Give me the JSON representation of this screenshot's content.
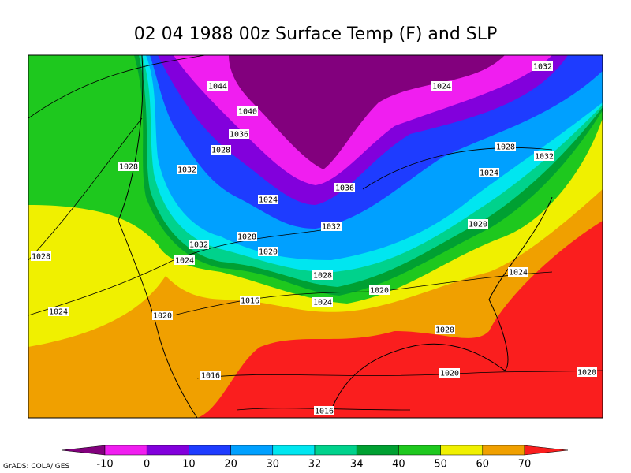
{
  "title": "02 04 1988 00z Surface Temp (F) and SLP",
  "credit": "GrADS: COLA/IGES",
  "isobar_labels": [
    1032,
    1044,
    1024,
    1040,
    1036,
    1028,
    1028,
    1032,
    1028,
    1032,
    1024,
    1036,
    1024,
    1020,
    1032,
    1028,
    1032,
    1020,
    1028,
    1024,
    1024,
    1028,
    1020,
    1016,
    1024,
    1024,
    1020,
    1020,
    1016,
    1020,
    1020,
    1016
  ],
  "colorbar": {
    "levels": [
      -10,
      0,
      10,
      20,
      30,
      32,
      34,
      40,
      50,
      60,
      70
    ],
    "colors": [
      "#82007d",
      "#f01ef0",
      "#8200dc",
      "#1e3cff",
      "#00a0ff",
      "#00e6f0",
      "#00d28c",
      "#00a032",
      "#1ec81e",
      "#f0f000",
      "#f0a000",
      "#fa1e1e"
    ]
  }
}
